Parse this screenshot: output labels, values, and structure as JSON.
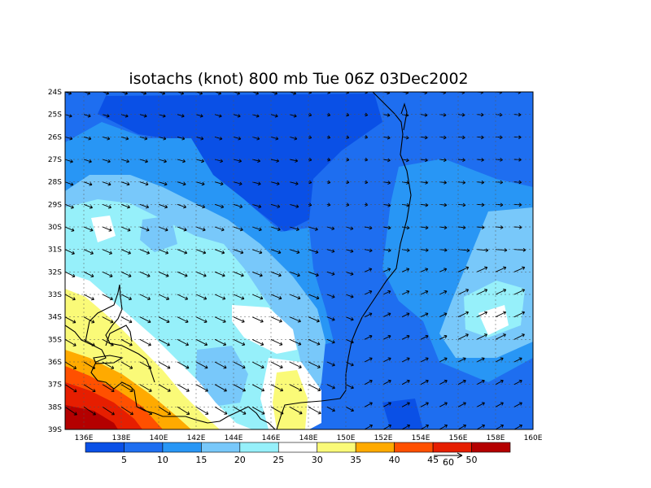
{
  "title": "isotachs (knot) 800 mb Tue 06Z 03Dec2002",
  "map": {
    "lon_labels": [
      "136E",
      "138E",
      "140E",
      "142E",
      "144E",
      "146E",
      "148E",
      "150E",
      "152E",
      "154E",
      "156E",
      "158E",
      "160E"
    ],
    "lat_labels": [
      "24S",
      "25S",
      "26S",
      "27S",
      "28S",
      "29S",
      "30S",
      "31S",
      "32S",
      "33S",
      "34S",
      "35S",
      "36S",
      "37S",
      "38S",
      "39S"
    ],
    "lon_range": [
      135,
      160
    ],
    "lat_range": [
      -39,
      -24
    ],
    "grid": true
  },
  "colorbar": {
    "colors": [
      "#0a50e6",
      "#1e6ef0",
      "#2896f5",
      "#78c8fa",
      "#96f0fa",
      "#ffffff",
      "#fafa78",
      "#ffaa00",
      "#ff5000",
      "#e61e00",
      "#b40000"
    ],
    "levels": [
      "5",
      "10",
      "15",
      "20",
      "25",
      "30",
      "35",
      "40",
      "45",
      "50"
    ]
  },
  "reference_vector": {
    "label": "60"
  }
}
